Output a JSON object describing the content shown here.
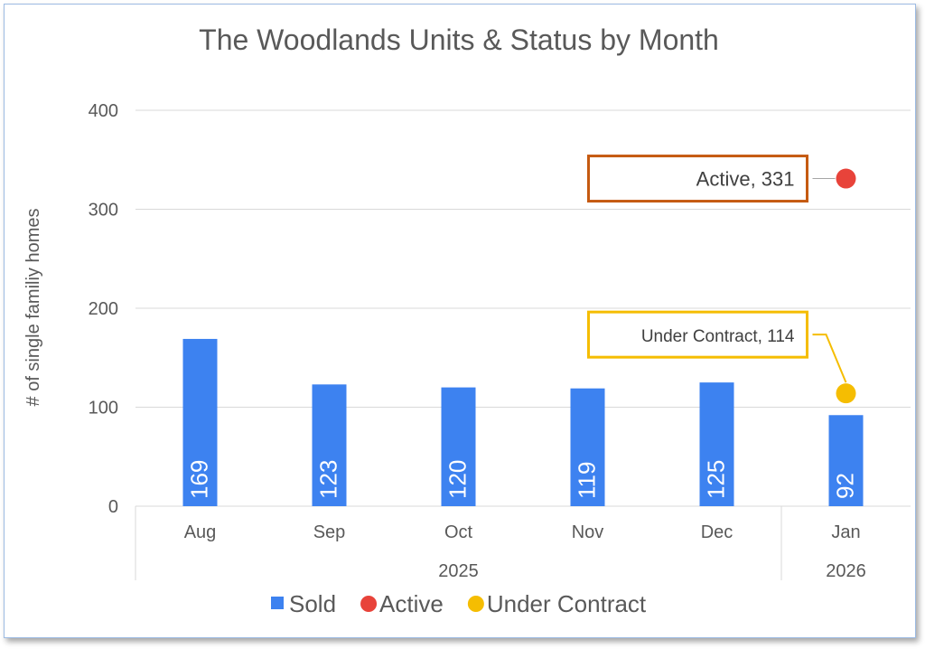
{
  "chart_data": {
    "type": "bar",
    "title": "The Woodlands Units & Status by Month",
    "ylabel": "# of single familiy homes",
    "xlabel": "",
    "ylim": [
      0,
      400
    ],
    "yticks": [
      0,
      100,
      200,
      300,
      400
    ],
    "grid": true,
    "legend_position": "bottom",
    "categories": [
      "Aug",
      "Sep",
      "Oct",
      "Nov",
      "Dec",
      "Jan"
    ],
    "year_groups": [
      {
        "label": "2025",
        "months": [
          "Aug",
          "Sep",
          "Oct",
          "Nov",
          "Dec"
        ]
      },
      {
        "label": "2026",
        "months": [
          "Jan"
        ]
      }
    ],
    "series": [
      {
        "name": "Sold",
        "kind": "bar",
        "color": "#3d82f0",
        "values": [
          169,
          123,
          120,
          119,
          125,
          92
        ]
      },
      {
        "name": "Active",
        "kind": "point",
        "color": "#e8433a",
        "values": [
          null,
          null,
          null,
          null,
          null,
          331
        ]
      },
      {
        "name": "Under Contract",
        "kind": "point",
        "color": "#f5bd02",
        "values": [
          null,
          null,
          null,
          null,
          null,
          114
        ]
      }
    ],
    "callouts": [
      {
        "series": "Active",
        "category": "Jan",
        "text": "Active, 331",
        "border_color": "#c55a11"
      },
      {
        "series": "Under Contract",
        "category": "Jan",
        "text": "Under Contract, 114",
        "border_color": "#f5bd02"
      }
    ],
    "colors": {
      "gridline": "#d9d9d9",
      "axis_text": "#595959",
      "title": "#595959"
    }
  }
}
